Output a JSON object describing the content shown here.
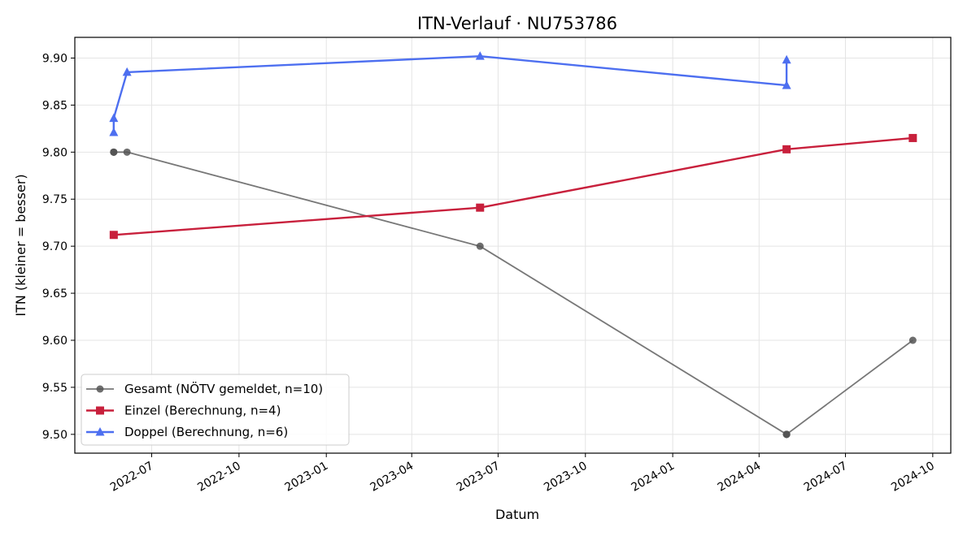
{
  "chart_data": {
    "type": "line",
    "title": "ITN-Verlauf · NU753786",
    "xlabel": "Datum",
    "ylabel": "ITN  (kleiner = besser)",
    "xlim": [
      "2022-04-11",
      "2024-10-20"
    ],
    "ylim": [
      9.48,
      9.922
    ],
    "x_ticks": [
      "2022-07",
      "2022-10",
      "2023-01",
      "2023-04",
      "2023-07",
      "2023-10",
      "2024-01",
      "2024-04",
      "2024-07",
      "2024-10"
    ],
    "y_ticks": [
      "9.50",
      "9.55",
      "9.60",
      "9.65",
      "9.70",
      "9.75",
      "9.80",
      "9.85",
      "9.90"
    ],
    "grid": true,
    "legend_position": "lower-left",
    "series": [
      {
        "name": "Gesamt (NÖTV gemeldet, n=10)",
        "color": "#555555",
        "marker": "circle",
        "x": [
          "2022-05-22",
          "2022-05-22",
          "2022-05-22",
          "2022-06-05",
          "2023-06-12",
          "2024-04-30",
          "2024-04-30",
          "2024-04-30",
          "2024-04-30",
          "2024-09-10"
        ],
        "y": [
          9.8,
          9.8,
          9.8,
          9.8,
          9.7,
          9.5,
          9.5,
          9.5,
          9.5,
          9.6
        ]
      },
      {
        "name": "Einzel (Berechnung, n=4)",
        "color": "#c8203c",
        "marker": "square",
        "x": [
          "2022-05-22",
          "2023-06-12",
          "2024-04-30",
          "2024-09-10"
        ],
        "y": [
          9.712,
          9.741,
          9.803,
          9.815
        ]
      },
      {
        "name": "Doppel (Berechnung, n=6)",
        "color": "#4d6ff0",
        "marker": "triangle",
        "x": [
          "2022-05-22",
          "2022-05-22",
          "2022-06-05",
          "2023-06-12",
          "2024-04-30",
          "2024-04-30"
        ],
        "y": [
          9.821,
          9.836,
          9.885,
          9.902,
          9.871,
          9.898
        ]
      }
    ]
  }
}
